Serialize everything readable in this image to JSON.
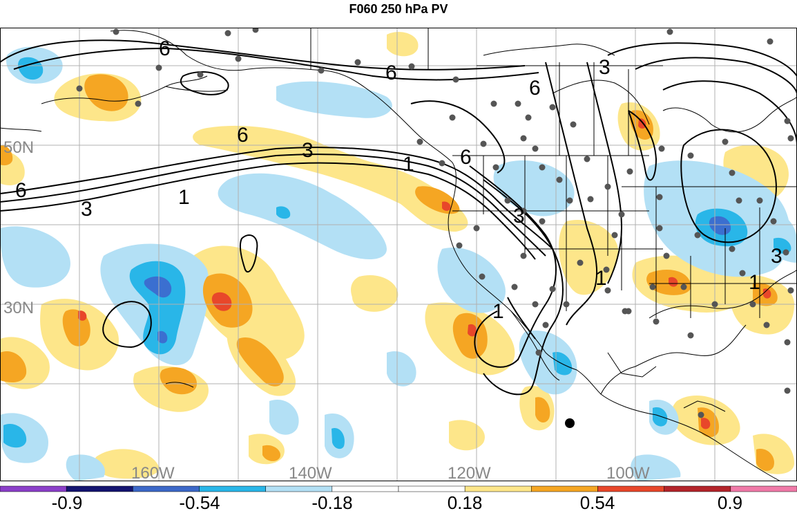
{
  "title": "F060 250 hPa PV",
  "map": {
    "lat_labels": [
      "50N",
      "30N"
    ],
    "lon_labels": [
      "160W",
      "140W",
      "120W",
      "100W"
    ],
    "contour_labels": [
      "6",
      "6",
      "6",
      "3",
      "1",
      "6",
      "3",
      "1",
      "6",
      "3",
      "1",
      "3",
      "6",
      "3",
      "1",
      "1"
    ],
    "colors": {
      "land_line": "#000000",
      "grid_line": "#b0b0b0",
      "contour": "#000000",
      "station": "#555555",
      "fill_neg_1": "#b3e0f5",
      "fill_neg_2": "#29b6e8",
      "fill_neg_3": "#3b6fd0",
      "fill_neg_4": "#1a1a9a",
      "fill_pos_1": "#fde68a",
      "fill_pos_2": "#f5a623",
      "fill_pos_3": "#e8472a",
      "fill_pos_4": "#b3242a"
    }
  },
  "colorbar": {
    "labels": [
      "-0.9",
      "-0.54",
      "-0.18",
      "0.18",
      "0.54",
      "0.9"
    ],
    "colors": [
      "#8b3fc9",
      "#141470",
      "#3c68c8",
      "#29b6e8",
      "#b3e0f5",
      "#ffffff",
      "#ffffff",
      "#fde68a",
      "#f5a623",
      "#e8472a",
      "#b3242a",
      "#f07aa8"
    ]
  }
}
